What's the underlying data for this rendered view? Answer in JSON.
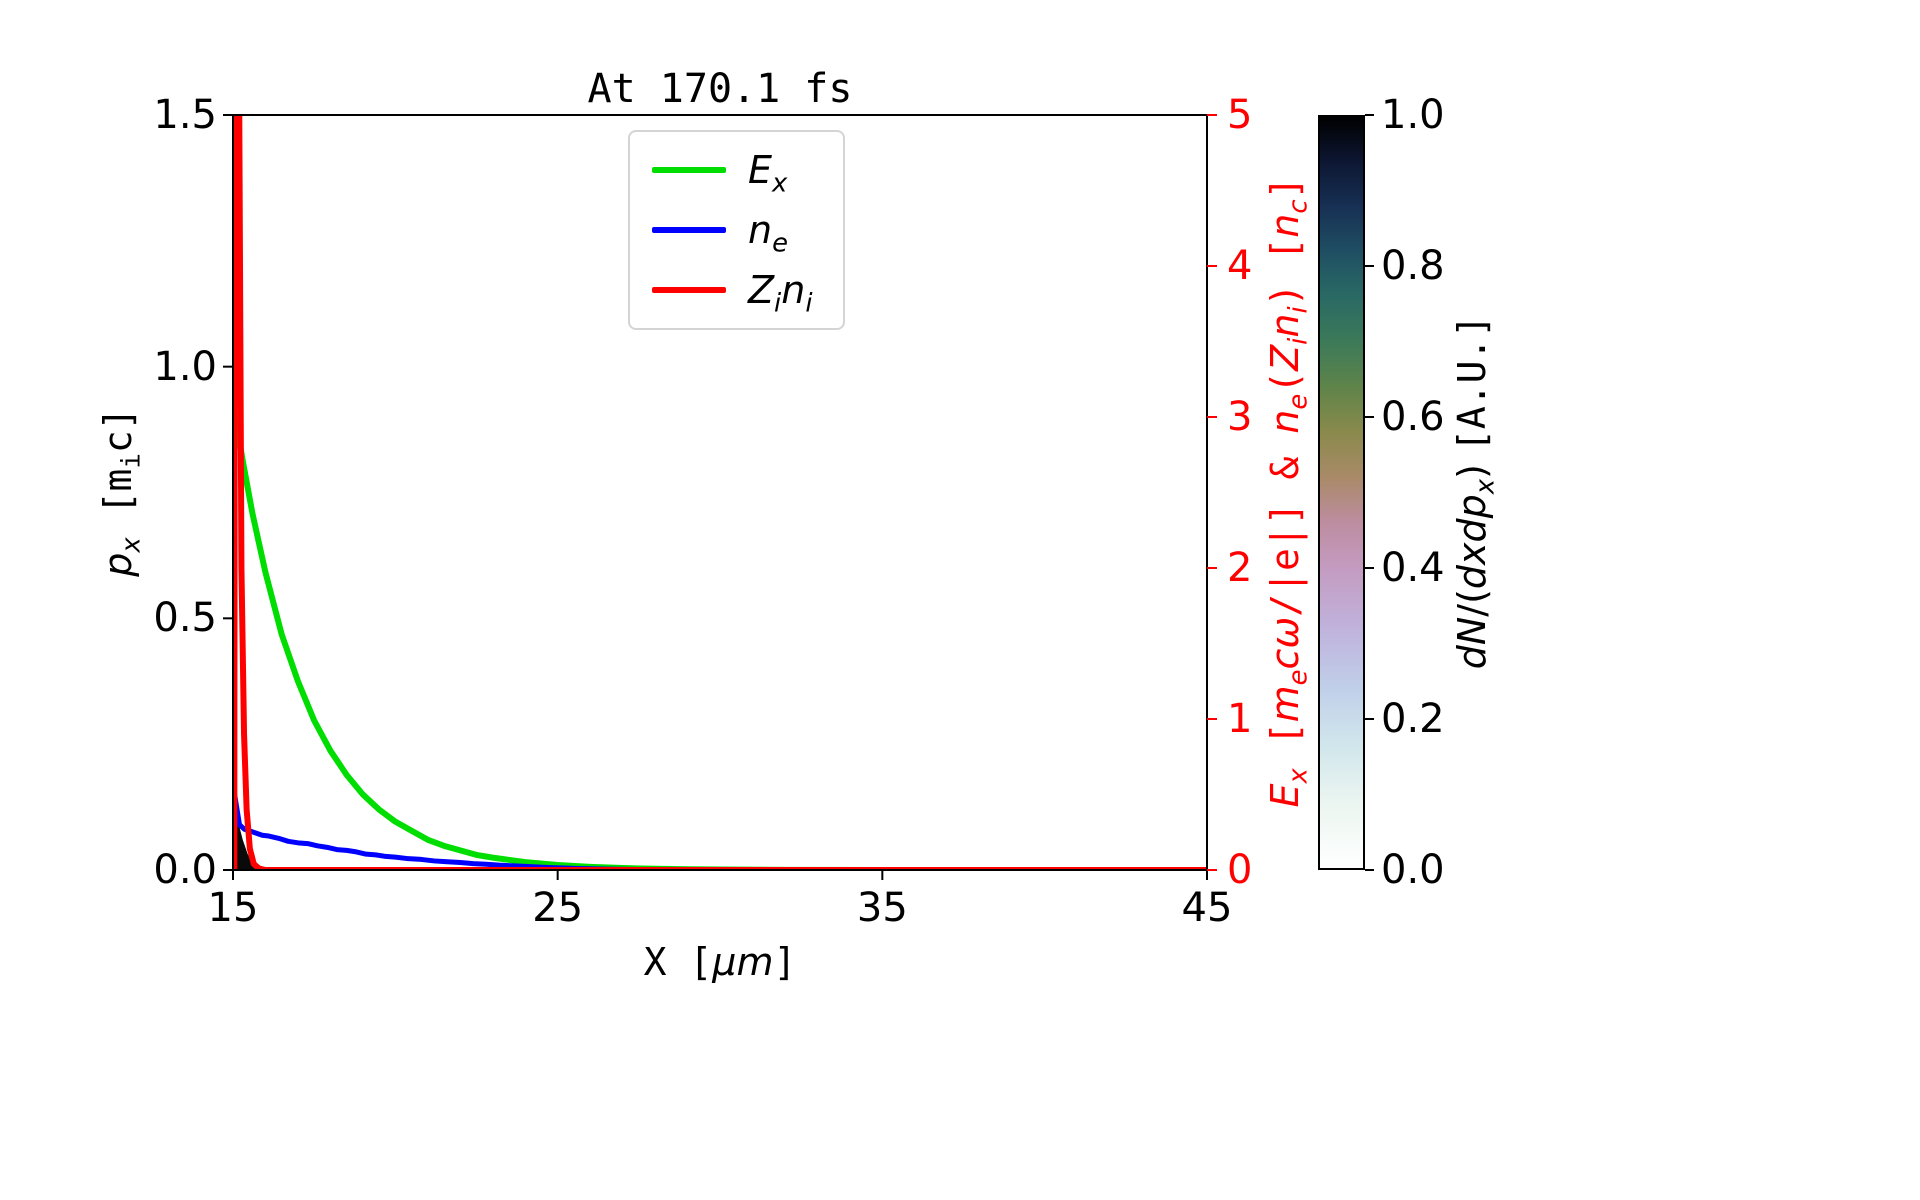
{
  "chart_data": {
    "type": "line",
    "title": "At 170.1 fs",
    "x_axis": {
      "lim": [
        15,
        45
      ],
      "ticks": [
        {
          "v": 15,
          "label": "15"
        },
        {
          "v": 25,
          "label": "25"
        },
        {
          "v": 35,
          "label": "35"
        },
        {
          "v": 45,
          "label": "45"
        }
      ],
      "label_parts": [
        {
          "t": "X [",
          "mono": true
        },
        {
          "t": "μm",
          "italic": true
        },
        {
          "t": "]",
          "mono": true
        }
      ]
    },
    "y_left": {
      "lim": [
        0,
        1.5
      ],
      "color": "#000000",
      "ticks": [
        {
          "v": 0.0,
          "label": "0.0"
        },
        {
          "v": 0.5,
          "label": "0.5"
        },
        {
          "v": 1.0,
          "label": "1.0"
        },
        {
          "v": 1.5,
          "label": "1.5"
        }
      ],
      "label_parts": [
        {
          "t": "p",
          "italic": true
        },
        {
          "t": "x",
          "sub": true,
          "italic": true
        },
        {
          "t": " [m",
          "mono": true
        },
        {
          "t": "i",
          "sub": true,
          "mono": true
        },
        {
          "t": "c]",
          "mono": true
        }
      ]
    },
    "y_right": {
      "lim": [
        0,
        5
      ],
      "color": "#ff0000",
      "ticks": [
        {
          "v": 0,
          "label": "0"
        },
        {
          "v": 1,
          "label": "1"
        },
        {
          "v": 2,
          "label": "2"
        },
        {
          "v": 3,
          "label": "3"
        },
        {
          "v": 4,
          "label": "4"
        },
        {
          "v": 5,
          "label": "5"
        }
      ],
      "label_parts": [
        {
          "t": "E",
          "italic": true
        },
        {
          "t": "x",
          "sub": true,
          "italic": true
        },
        {
          "t": " [",
          "mono": true
        },
        {
          "t": "m",
          "italic": true
        },
        {
          "t": "e",
          "sub": true,
          "italic": true
        },
        {
          "t": "cω",
          "italic": true
        },
        {
          "t": "/|e|] & ",
          "mono": true
        },
        {
          "t": "n",
          "italic": true
        },
        {
          "t": "e",
          "sub": true,
          "italic": true
        },
        {
          "t": "(",
          "mono": true
        },
        {
          "t": "Z",
          "italic": true
        },
        {
          "t": "i",
          "sub": true,
          "italic": true
        },
        {
          "t": "n",
          "italic": true
        },
        {
          "t": "i",
          "sub": true,
          "italic": true
        },
        {
          "t": ") [",
          "mono": true
        },
        {
          "t": "n",
          "italic": true
        },
        {
          "t": "c",
          "sub": true,
          "italic": true
        },
        {
          "t": "]",
          "mono": true
        }
      ]
    },
    "legend": [
      {
        "label_parts": [
          {
            "t": "E",
            "italic": true
          },
          {
            "t": "x",
            "sub": true,
            "italic": true
          }
        ]
      },
      {
        "label_parts": [
          {
            "t": "n",
            "italic": true
          },
          {
            "t": "e",
            "sub": true,
            "italic": true
          }
        ]
      },
      {
        "label_parts": [
          {
            "t": "Z",
            "italic": true
          },
          {
            "t": "i",
            "sub": true,
            "italic": true
          },
          {
            "t": "n",
            "italic": true
          },
          {
            "t": "i",
            "sub": true,
            "italic": true
          }
        ]
      }
    ],
    "series": [
      {
        "name": "E_x",
        "color": "#00dd00",
        "axis": "right",
        "width": 6,
        "x": [
          15.0,
          15.3,
          15.6,
          16.0,
          16.5,
          17.0,
          17.5,
          18.0,
          18.5,
          19.0,
          19.5,
          20.0,
          20.5,
          21.0,
          21.5,
          22.0,
          22.5,
          23.0,
          24.0,
          25.0,
          26.0,
          27.0,
          28.0,
          29.0,
          30.0,
          32.0,
          35.0,
          40.0,
          45.0
        ],
        "y": [
          3.1,
          2.71,
          2.36,
          1.97,
          1.56,
          1.25,
          0.99,
          0.79,
          0.63,
          0.5,
          0.4,
          0.32,
          0.26,
          0.2,
          0.16,
          0.13,
          0.1,
          0.082,
          0.052,
          0.033,
          0.021,
          0.013,
          0.008,
          0.005,
          0.003,
          0.001,
          0.0,
          0.0,
          0.0
        ]
      },
      {
        "name": "n_e",
        "color": "#0000ff",
        "axis": "right",
        "width": 5,
        "x": [
          15.05,
          15.2,
          15.35,
          15.5,
          15.7,
          15.9,
          16.1,
          16.4,
          16.7,
          17.0,
          17.3,
          17.6,
          17.9,
          18.2,
          18.5,
          18.8,
          19.1,
          19.4,
          19.7,
          20.0,
          20.4,
          20.8,
          21.2,
          21.6,
          22.0,
          22.4,
          22.8,
          23.2,
          23.6,
          24.0,
          24.4,
          24.8,
          25.2,
          25.6,
          26.0,
          26.5,
          27.0,
          28.0,
          30.0,
          35.0,
          40.0,
          45.0
        ],
        "y": [
          0.5,
          0.3,
          0.27,
          0.26,
          0.245,
          0.23,
          0.225,
          0.21,
          0.19,
          0.18,
          0.175,
          0.16,
          0.15,
          0.135,
          0.13,
          0.12,
          0.105,
          0.1,
          0.09,
          0.085,
          0.075,
          0.07,
          0.06,
          0.055,
          0.05,
          0.042,
          0.038,
          0.032,
          0.028,
          0.024,
          0.02,
          0.016,
          0.013,
          0.01,
          0.008,
          0.006,
          0.004,
          0.003,
          0.002,
          0.001,
          0.0,
          0.0
        ]
      },
      {
        "name": "Z_i n_i",
        "color": "#ff0000",
        "axis": "right",
        "width": 6,
        "x": [
          15.0,
          15.04,
          15.06,
          15.18,
          15.26,
          15.34,
          15.42,
          15.52,
          15.64,
          15.8,
          16.0,
          17.0,
          20.0,
          25.0,
          30.0,
          35.0,
          40.0,
          45.0
        ],
        "y": [
          0.0,
          0.0,
          5.6,
          5.6,
          2.0,
          0.9,
          0.4,
          0.14,
          0.04,
          0.01,
          0.0,
          0.0,
          0.0,
          0.0,
          0.0,
          0.0,
          0.0,
          0.0
        ]
      }
    ],
    "histogram": {
      "fill": "#0a0a0a",
      "axis": "left",
      "points": [
        [
          15.0,
          0.0
        ],
        [
          15.0,
          0.14
        ],
        [
          15.08,
          0.12
        ],
        [
          15.18,
          0.09
        ],
        [
          15.3,
          0.06
        ],
        [
          15.45,
          0.032
        ],
        [
          15.6,
          0.014
        ],
        [
          15.78,
          0.005
        ],
        [
          15.95,
          0.0
        ]
      ]
    },
    "colorbar": {
      "lim": [
        0,
        1
      ],
      "ticks": [
        {
          "v": 0.0,
          "label": "0.0"
        },
        {
          "v": 0.2,
          "label": "0.2"
        },
        {
          "v": 0.4,
          "label": "0.4"
        },
        {
          "v": 0.6,
          "label": "0.6"
        },
        {
          "v": 0.8,
          "label": "0.8"
        },
        {
          "v": 1.0,
          "label": "1.0"
        }
      ],
      "label_parts": [
        {
          "t": "dN",
          "italic": true
        },
        {
          "t": "/("
        },
        {
          "t": "dxdp",
          "italic": true
        },
        {
          "t": "x",
          "sub": true,
          "italic": true
        },
        {
          "t": ") "
        },
        {
          "t": "[A.U.]",
          "mono": true
        }
      ],
      "gradient_stops": [
        [
          0.0,
          "#ffffff"
        ],
        [
          0.08,
          "#edf6f1"
        ],
        [
          0.16,
          "#d2e7ec"
        ],
        [
          0.24,
          "#c0cfe9"
        ],
        [
          0.32,
          "#c0b2dc"
        ],
        [
          0.4,
          "#c49bc0"
        ],
        [
          0.46,
          "#bd8da0"
        ],
        [
          0.52,
          "#a98a68"
        ],
        [
          0.58,
          "#8a8a4c"
        ],
        [
          0.64,
          "#5f844a"
        ],
        [
          0.7,
          "#3c7a58"
        ],
        [
          0.76,
          "#2a6a64"
        ],
        [
          0.82,
          "#1f4f63"
        ],
        [
          0.88,
          "#173054"
        ],
        [
          0.94,
          "#0d1733"
        ],
        [
          1.0,
          "#000000"
        ]
      ]
    }
  }
}
